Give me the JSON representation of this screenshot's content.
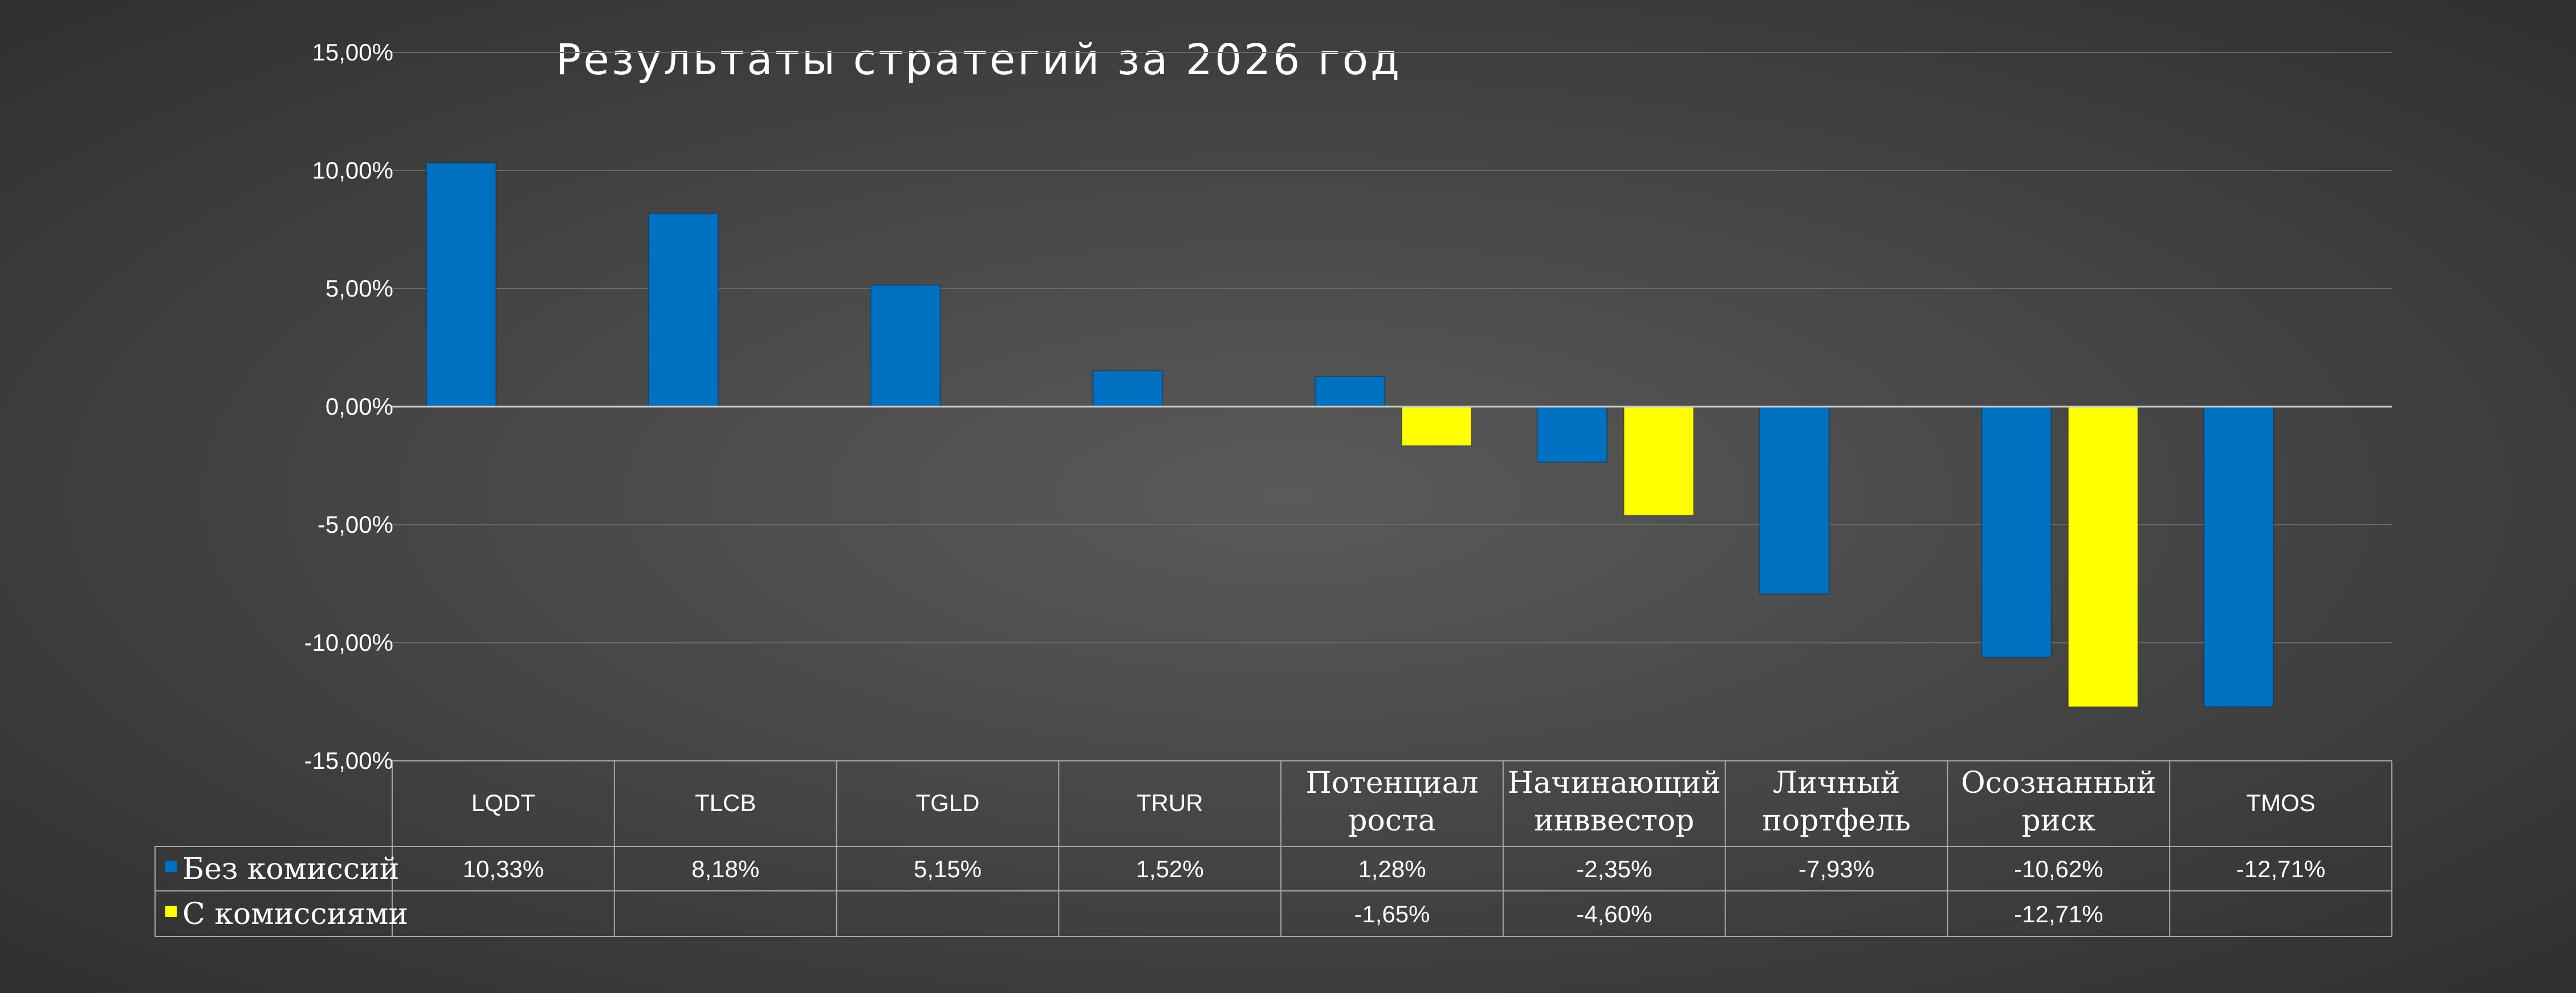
{
  "chart_data": {
    "type": "bar",
    "title": "Результаты стратегий за 2026 год",
    "categories": [
      "LQDT",
      "TLCB",
      "TGLD",
      "TRUR",
      "Потенциал роста",
      "Начинающий инввестор",
      "Личный портфель",
      "Осознанный риск",
      "TMOS"
    ],
    "category_lines": [
      [
        "LQDT"
      ],
      [
        "TLCB"
      ],
      [
        "TGLD"
      ],
      [
        "TRUR"
      ],
      [
        "Потенциал",
        "роста"
      ],
      [
        "Начинающий",
        "инввестор"
      ],
      [
        "Личный",
        "портфель"
      ],
      [
        "Осознанный",
        "риск"
      ],
      [
        "TMOS"
      ]
    ],
    "series": [
      {
        "name": "Без комиссий",
        "color": "#0070c0",
        "values": [
          10.33,
          8.18,
          5.15,
          1.52,
          1.28,
          -2.35,
          -7.93,
          -10.62,
          -12.71
        ],
        "labels": [
          "10,33%",
          "8,18%",
          "5,15%",
          "1,52%",
          "1,28%",
          "-2,35%",
          "-7,93%",
          "-10,62%",
          "-12,71%"
        ]
      },
      {
        "name": "С комиссиями",
        "color": "#ffff00",
        "values": [
          null,
          null,
          null,
          null,
          -1.65,
          -4.6,
          null,
          -12.71,
          null
        ],
        "labels": [
          "",
          "",
          "",
          "",
          "-1,65%",
          "-4,60%",
          "",
          "-12,71%",
          ""
        ]
      }
    ],
    "ylim": [
      -15,
      15
    ],
    "yticks": [
      15,
      10,
      5,
      0,
      -5,
      -10,
      -15
    ],
    "ytick_labels": [
      "15,00%",
      "10,00%",
      "5,00%",
      "0,00%",
      "-5,00%",
      "-10,00%",
      "-15,00%"
    ],
    "grid": true,
    "legend": "data-table"
  }
}
